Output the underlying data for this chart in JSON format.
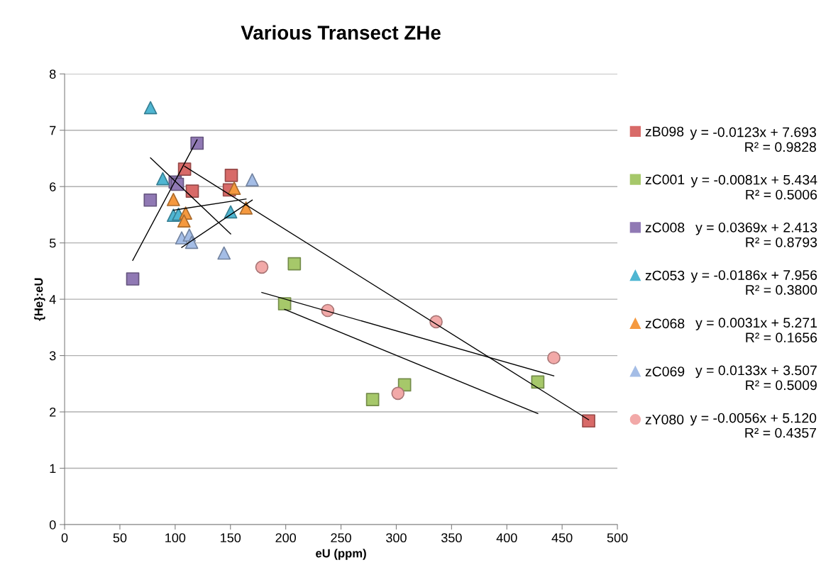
{
  "chart_data": {
    "type": "scatter",
    "title": "Various Transect ZHe",
    "xlabel": "eU (ppm)",
    "ylabel": "{He}:eU",
    "xlim": [
      0,
      500
    ],
    "xticks": [
      0,
      50,
      100,
      150,
      200,
      250,
      300,
      350,
      400,
      450,
      500
    ],
    "ylim": [
      0,
      8
    ],
    "yticks": [
      0,
      1,
      2,
      3,
      4,
      5,
      6,
      7,
      8
    ],
    "grid": "y",
    "legend": "right",
    "series": [
      {
        "name": "zB098",
        "color": "#d86a68",
        "marker": "square",
        "x": [
          108.5,
          150.8,
          149,
          115.5,
          474
        ],
        "values": [
          6.31,
          6.2,
          5.94,
          5.92,
          1.84
        ]
      },
      {
        "name": "zC001",
        "color": "#a6c86a",
        "marker": "square",
        "x": [
          207.8,
          199,
          278.6,
          307.5,
          428
        ],
        "values": [
          4.63,
          3.92,
          2.22,
          2.48,
          2.53
        ]
      },
      {
        "name": "zC008",
        "color": "#9079b4",
        "marker": "square",
        "x": [
          119.8,
          100,
          102,
          77.5,
          61.6
        ],
        "values": [
          6.77,
          6.08,
          6.04,
          5.76,
          4.36
        ]
      },
      {
        "name": "zC053",
        "color": "#4fb6d2",
        "marker": "triangle",
        "x": [
          77.7,
          88.8,
          98.4,
          103,
          150.2
        ],
        "values": [
          7.4,
          6.14,
          5.49,
          5.51,
          5.55
        ]
      },
      {
        "name": "zC068",
        "color": "#f5993f",
        "marker": "triangle",
        "x": [
          98.4,
          109.5,
          108,
          153.4,
          164.1
        ],
        "values": [
          5.77,
          5.53,
          5.39,
          5.97,
          5.62
        ]
      },
      {
        "name": "zC069",
        "color": "#a4bde6",
        "marker": "triangle",
        "x": [
          105.9,
          112.8,
          114.9,
          144.2,
          169.7
        ],
        "values": [
          5.09,
          5.14,
          5.01,
          4.82,
          6.12
        ]
      },
      {
        "name": "zY080",
        "color": "#f2a9a8",
        "marker": "circle",
        "x": [
          178.4,
          238,
          336,
          301.5,
          442.5
        ],
        "values": [
          4.57,
          3.8,
          3.6,
          2.33,
          2.96
        ]
      },
      {
        "type": "line",
        "color": "#000000",
        "marker": "none",
        "x": [
          108.5,
          474
        ],
        "values": [
          6.36,
          1.86
        ]
      },
      {
        "type": "line",
        "color": "#000000",
        "marker": "none",
        "x": [
          199,
          428
        ],
        "values": [
          3.82,
          1.97
        ]
      },
      {
        "type": "line",
        "color": "#000000",
        "marker": "none",
        "x": [
          61.6,
          119.8
        ],
        "values": [
          4.69,
          6.83
        ]
      },
      {
        "type": "line",
        "color": "#000000",
        "marker": "none",
        "x": [
          77.7,
          150.2
        ],
        "values": [
          6.51,
          5.16
        ]
      },
      {
        "type": "line",
        "color": "#000000",
        "marker": "none",
        "x": [
          98.4,
          164.1
        ],
        "values": [
          5.58,
          5.78
        ]
      },
      {
        "type": "line",
        "color": "#000000",
        "marker": "none",
        "x": [
          105.9,
          169.7
        ],
        "values": [
          4.92,
          5.76
        ]
      },
      {
        "type": "line",
        "color": "#000000",
        "marker": "none",
        "x": [
          178.4,
          442.5
        ],
        "values": [
          4.12,
          2.64
        ]
      }
    ],
    "annotations": [
      "y = -0.0123x + 7.693\nR² = 0.9828",
      "y = -0.0081x + 5.434\nR² = 0.5006",
      "y = 0.0369x + 2.413\nR² = 0.8793",
      "y = -0.0186x + 7.956\nR² = 0.3800",
      "y = 0.0031x + 5.271\nR² = 0.1656",
      "y = 0.0133x + 3.507\nR² = 0.5009",
      "y = -0.0056x + 5.120\nR² = 0.4357"
    ]
  }
}
